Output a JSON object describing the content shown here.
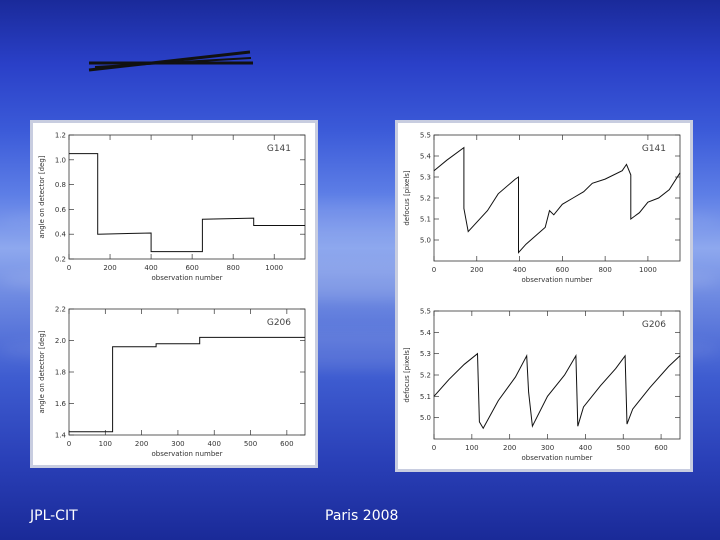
{
  "footer": {
    "left": "JPL-CIT",
    "center": "Paris 2008"
  },
  "chart_data": [
    {
      "type": "line",
      "title": "G141",
      "xlabel": "observation number",
      "ylabel": "angle on detector [deg]",
      "xlim": [
        0,
        1150
      ],
      "ylim": [
        0.2,
        1.2
      ],
      "xticks": [
        0,
        200,
        400,
        600,
        800,
        1000
      ],
      "yticks": [
        0.2,
        0.4,
        0.6,
        0.8,
        1.0,
        1.2
      ],
      "series": [
        {
          "x": [
            0,
            140,
            140,
            400,
            400,
            650,
            650,
            900,
            900,
            1150
          ],
          "y": [
            1.05,
            1.05,
            0.4,
            0.41,
            0.26,
            0.26,
            0.52,
            0.53,
            0.47,
            0.47
          ]
        }
      ]
    },
    {
      "type": "line",
      "title": "G206",
      "xlabel": "observation number",
      "ylabel": "angle on detector [deg]",
      "xlim": [
        0,
        650
      ],
      "ylim": [
        1.4,
        2.2
      ],
      "xticks": [
        0,
        100,
        200,
        300,
        400,
        500,
        600
      ],
      "yticks": [
        1.4,
        1.6,
        1.8,
        2.0,
        2.2
      ],
      "series": [
        {
          "x": [
            0,
            120,
            120,
            240,
            240,
            360,
            360,
            650
          ],
          "y": [
            1.42,
            1.42,
            1.96,
            1.96,
            1.98,
            1.98,
            2.02,
            2.02
          ]
        }
      ]
    },
    {
      "type": "line",
      "title": "G141",
      "xlabel": "observation number",
      "ylabel": "defocus [pixels]",
      "xlim": [
        0,
        1150
      ],
      "ylim": [
        4.9,
        5.5
      ],
      "xticks": [
        0,
        200,
        400,
        600,
        800,
        1000
      ],
      "yticks": [
        5.0,
        5.1,
        5.2,
        5.3,
        5.4,
        5.5
      ],
      "series": [
        {
          "x": [
            0,
            60,
            140,
            140,
            160,
            250,
            300,
            380,
            395,
            395,
            430,
            520,
            540,
            560,
            600,
            650,
            700,
            740,
            800,
            880,
            900,
            920,
            920,
            960,
            1000,
            1050,
            1100,
            1150
          ],
          "y": [
            5.33,
            5.38,
            5.44,
            5.15,
            5.04,
            5.14,
            5.22,
            5.29,
            5.3,
            4.94,
            4.98,
            5.06,
            5.14,
            5.12,
            5.17,
            5.2,
            5.23,
            5.27,
            5.29,
            5.33,
            5.36,
            5.31,
            5.1,
            5.13,
            5.18,
            5.2,
            5.24,
            5.32
          ]
        }
      ]
    },
    {
      "type": "line",
      "title": "G206",
      "xlabel": "observation number",
      "ylabel": "defocus [pixels]",
      "xlim": [
        0,
        650
      ],
      "ylim": [
        4.9,
        5.5
      ],
      "xticks": [
        0,
        100,
        200,
        300,
        400,
        500,
        600
      ],
      "yticks": [
        5.0,
        5.1,
        5.2,
        5.3,
        5.4,
        5.5
      ],
      "series": [
        {
          "x": [
            0,
            40,
            80,
            115,
            120,
            130,
            170,
            215,
            245,
            250,
            260,
            300,
            345,
            375,
            380,
            395,
            440,
            480,
            505,
            510,
            525,
            570,
            620,
            650
          ],
          "y": [
            5.1,
            5.18,
            5.25,
            5.3,
            4.98,
            4.95,
            5.08,
            5.19,
            5.29,
            5.12,
            4.96,
            5.1,
            5.2,
            5.29,
            4.96,
            5.05,
            5.15,
            5.23,
            5.29,
            4.97,
            5.04,
            5.14,
            5.24,
            5.29
          ]
        }
      ]
    }
  ]
}
